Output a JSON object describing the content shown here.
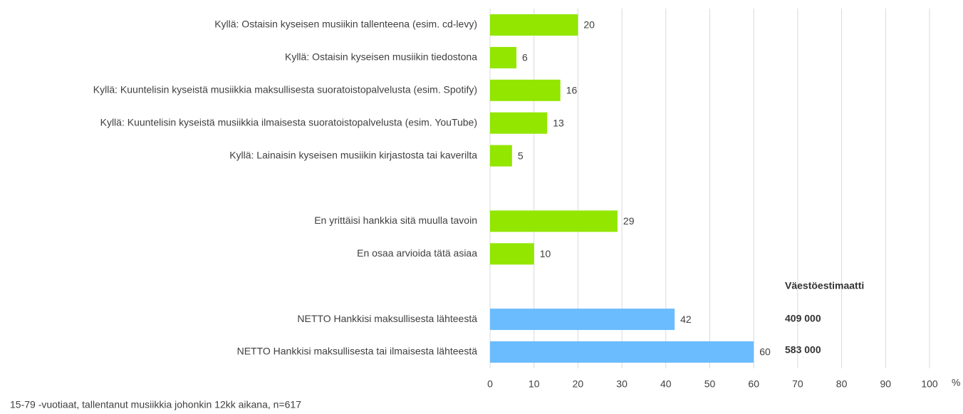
{
  "chart_data": {
    "type": "barh",
    "categories": [
      "Kyllä: Ostaisin kyseisen musiikin tallenteena (esim. cd-levy)",
      "Kyllä: Ostaisin kyseisen musiikin tiedostona",
      "Kyllä: Kuuntelisin kyseistä musiikkia maksullisesta suoratoistopalvelusta (esim. Spotify)",
      "Kyllä: Kuuntelisin kyseistä musiikkia ilmaisesta suoratoistopalvelusta (esim. YouTube)",
      "Kyllä: Lainaisin kyseisen musiikin kirjastosta tai kaverilta",
      null,
      "En yrittäisi hankkia sitä muulla tavoin",
      "En osaa arvioida tätä asiaa",
      null,
      "NETTO Hankkisi maksullisesta lähteestä",
      "NETTO Hankkisi maksullisesta tai ilmaisesta lähteestä"
    ],
    "values": [
      20,
      6,
      16,
      13,
      5,
      null,
      29,
      10,
      null,
      42,
      60
    ],
    "colors": [
      "#92e600",
      "#92e600",
      "#92e600",
      "#92e600",
      "#92e600",
      null,
      "#92e600",
      "#92e600",
      null,
      "#6bbcff",
      "#6bbcff"
    ],
    "xlim": [
      0,
      100
    ],
    "xticks": [
      0,
      10,
      20,
      30,
      40,
      50,
      60,
      70,
      80,
      90,
      100
    ],
    "xlabel": "%",
    "grid": true,
    "annotations": [
      "Väestöestimaatti",
      "409 000",
      "583 000"
    ],
    "note": "15-79 -vuotiaat, tallentanut musiikkia johonkin 12kk aikana, n=617"
  }
}
